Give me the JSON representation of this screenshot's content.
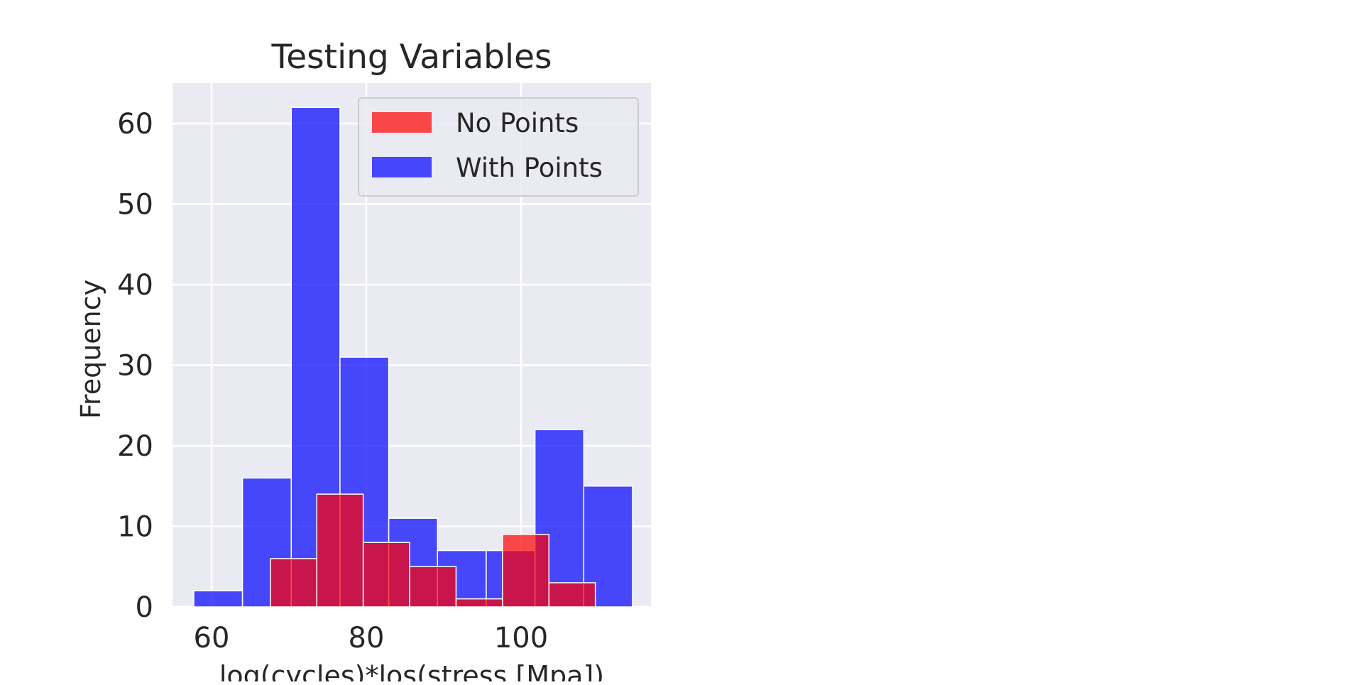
{
  "chart_data": {
    "type": "bar",
    "title": "Testing Variables",
    "xlabel": "log(cycles)*los(stress [Mpa])",
    "ylabel": "Frequency",
    "xlim": [
      54.9,
      117.0
    ],
    "ylim": [
      0,
      65
    ],
    "xticks": [
      60,
      80,
      100
    ],
    "yticks": [
      0,
      10,
      20,
      30,
      40,
      50,
      60
    ],
    "grid": true,
    "legend_position": "top-right",
    "series": [
      {
        "name": "No Points",
        "color": "#ff0000",
        "bins": [
          {
            "x0": 67.6,
            "x1": 73.6,
            "count": 6
          },
          {
            "x0": 73.6,
            "x1": 79.6,
            "count": 14
          },
          {
            "x0": 79.6,
            "x1": 85.6,
            "count": 8
          },
          {
            "x0": 85.6,
            "x1": 91.6,
            "count": 5
          },
          {
            "x0": 91.6,
            "x1": 97.6,
            "count": 1
          },
          {
            "x0": 97.6,
            "x1": 103.6,
            "count": 9
          },
          {
            "x0": 103.6,
            "x1": 109.6,
            "count": 3
          }
        ]
      },
      {
        "name": "With Points",
        "color": "#0000ff",
        "bins": [
          {
            "x0": 57.7,
            "x1": 64.0,
            "count": 2
          },
          {
            "x0": 64.0,
            "x1": 70.3,
            "count": 16
          },
          {
            "x0": 70.3,
            "x1": 76.6,
            "count": 62
          },
          {
            "x0": 76.6,
            "x1": 82.9,
            "count": 31
          },
          {
            "x0": 82.9,
            "x1": 89.2,
            "count": 11
          },
          {
            "x0": 89.2,
            "x1": 95.5,
            "count": 7
          },
          {
            "x0": 95.5,
            "x1": 101.8,
            "count": 7
          },
          {
            "x0": 101.8,
            "x1": 108.1,
            "count": 22
          },
          {
            "x0": 108.1,
            "x1": 114.4,
            "count": 15
          }
        ]
      }
    ]
  }
}
